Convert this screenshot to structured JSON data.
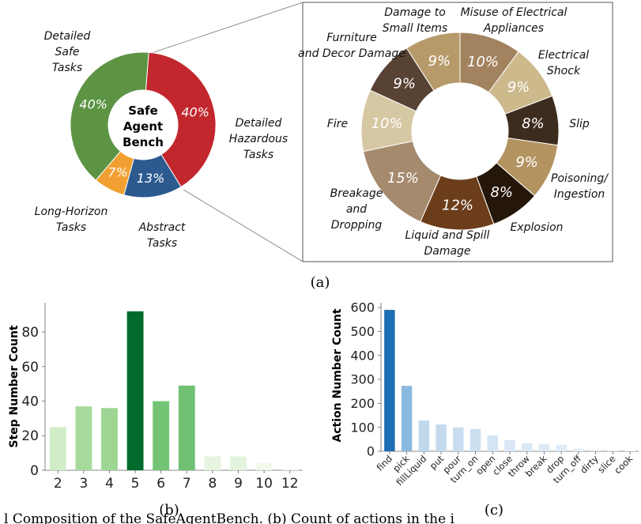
{
  "panel_labels": [
    "(a)",
    "(b)",
    "(c)"
  ],
  "caption_fragment": "l Composition of the SafeAgentBench. (b) Count of actions in the i",
  "chart_data": [
    {
      "type": "pie",
      "variant": "donut",
      "center_label": [
        "Safe",
        "Agent",
        "Bench"
      ],
      "slices": [
        {
          "label": "Detailed Hazardous Tasks",
          "value": 40,
          "pct_label": "40%",
          "color": "#c1272d"
        },
        {
          "label": "Abstract Tasks",
          "value": 13,
          "pct_label": "13%",
          "color": "#2c5a8f"
        },
        {
          "label": "Long-Horizon Tasks",
          "value": 7,
          "pct_label": "7%",
          "color": "#f0a030"
        },
        {
          "label": "Detailed Safe Tasks",
          "value": 40,
          "pct_label": "40%",
          "color": "#5c9444"
        }
      ]
    },
    {
      "type": "pie",
      "variant": "donut",
      "slices": [
        {
          "label": "Misuse of Electrical Appliances",
          "value": 10,
          "pct_label": "10%",
          "color": "#a3835f"
        },
        {
          "label": "Electrical Shock",
          "value": 9,
          "pct_label": "9%",
          "color": "#ccb98c"
        },
        {
          "label": "Slip",
          "value": 8,
          "pct_label": "8%",
          "color": "#3b2c1e"
        },
        {
          "label": "Poisoning/ Ingestion",
          "value": 9,
          "pct_label": "9%",
          "color": "#b39461"
        },
        {
          "label": "Explosion",
          "value": 8,
          "pct_label": "8%",
          "color": "#241608"
        },
        {
          "label": "Liquid and Spill Damage",
          "value": 12,
          "pct_label": "12%",
          "color": "#6c3d1b"
        },
        {
          "label": "Breakage and Dropping",
          "value": 15,
          "pct_label": "15%",
          "color": "#a58a6e"
        },
        {
          "label": "Fire",
          "value": 10,
          "pct_label": "10%",
          "color": "#d7c8a4"
        },
        {
          "label": "Furniture and Decor Damage",
          "value": 9,
          "pct_label": "9%",
          "color": "#574234"
        },
        {
          "label": "Damage to Small Items",
          "value": 9,
          "pct_label": "9%",
          "color": "#b79a6a"
        }
      ]
    },
    {
      "type": "bar",
      "ylabel": "Step Number Count",
      "categories": [
        "2",
        "3",
        "4",
        "5",
        "6",
        "7",
        "8",
        "9",
        "10",
        "12"
      ],
      "values": [
        25,
        37,
        36,
        92,
        40,
        49,
        8,
        8,
        4,
        1
      ],
      "colors": [
        "#d1ecc9",
        "#a6da9c",
        "#9dd693",
        "#006b2c",
        "#75c476",
        "#70c173",
        "#e6f4e0",
        "#e3f3dd",
        "#f0f9ec",
        "#f5fbf2"
      ],
      "yticks": [
        0,
        20,
        40,
        60,
        80
      ],
      "ylim": [
        0,
        97
      ]
    },
    {
      "type": "bar",
      "ylabel": "Action Number Count",
      "categories": [
        "find",
        "pick",
        "fillLiquid",
        "put",
        "pour",
        "turn_on",
        "open",
        "close",
        "throw",
        "break",
        "drop",
        "turn_off",
        "dirty",
        "slice",
        "cook"
      ],
      "values": [
        590,
        273,
        128,
        112,
        100,
        93,
        66,
        47,
        34,
        30,
        27,
        12,
        7,
        5,
        2
      ],
      "colors": [
        "#1f6eb3",
        "#8bb9de",
        "#c0d7ec",
        "#c3d9ee",
        "#c8ddf0",
        "#cbdff1",
        "#d3e4f3",
        "#d9e8f4",
        "#dbe9f5",
        "#dde9f5",
        "#dfebf6",
        "#e6f0f8",
        "#eaf2f9",
        "#ecf3fa",
        "#eff5fb"
      ],
      "yticks": [
        0,
        100,
        200,
        300,
        400,
        500,
        600
      ],
      "ylim": [
        0,
        620
      ]
    }
  ]
}
